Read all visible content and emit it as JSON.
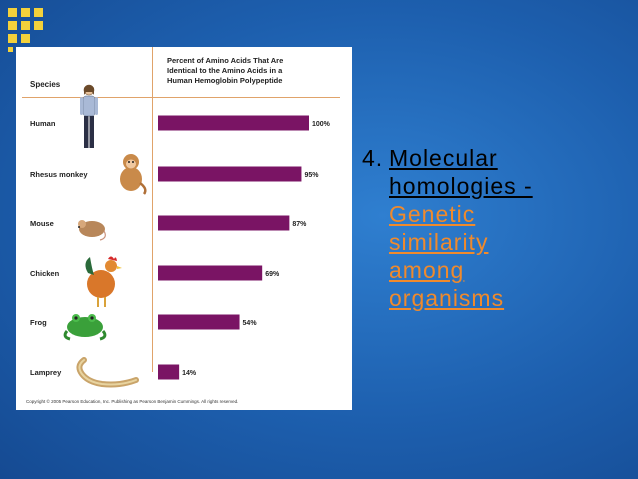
{
  "slide": {
    "number": "4.",
    "title_lines": [
      "Molecular",
      "homologies -"
    ],
    "subtitle_lines": [
      "Genetic",
      "similarity",
      "among",
      "organisms "
    ]
  },
  "figure": {
    "species_header": "Species",
    "percent_header": "Percent of Amino Acids That Are\nIdentical to the Amino Acids in a\nHuman Hemoglobin Polypeptide",
    "copyright": "Copyright © 2005 Pearson Education, Inc. Publishing as Pearson Benjamin Cummings. All rights reserved."
  },
  "chart_data": {
    "type": "bar",
    "orientation": "horizontal",
    "categories": [
      "Human",
      "Rhesus monkey",
      "Mouse",
      "Chicken",
      "Frog",
      "Lamprey"
    ],
    "values": [
      100,
      95,
      87,
      69,
      54,
      14
    ],
    "value_labels": [
      "100%",
      "95%",
      "87%",
      "69%",
      "54%",
      "14%"
    ],
    "bar_color": "#7a1464",
    "xlim": [
      0,
      100
    ]
  },
  "colors": {
    "background": "#1d5fae",
    "subtitle": "#f08a2c",
    "logo": "#f3d13b"
  }
}
